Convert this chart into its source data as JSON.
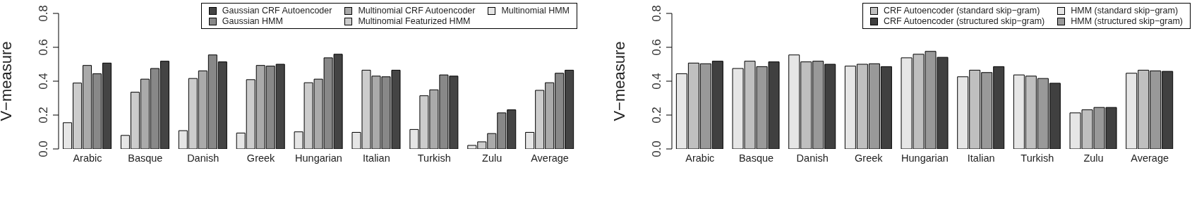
{
  "chart_data": [
    {
      "type": "bar",
      "ylabel": "V−measure",
      "categories": [
        "Arabic",
        "Basque",
        "Danish",
        "Greek",
        "Hungarian",
        "Italian",
        "Turkish",
        "Zulu",
        "Average"
      ],
      "ylim": [
        0,
        0.8
      ],
      "yticks": [
        {
          "value": 0,
          "label": "0.0"
        },
        0.2,
        0.4,
        0.6,
        0.8
      ],
      "legend": "top",
      "series": [
        {
          "name": "Multinomial HMM",
          "color": "#e6e6e6",
          "values": [
            0.155,
            0.08,
            0.108,
            0.094,
            0.101,
            0.098,
            0.115,
            0.021,
            0.098
          ]
        },
        {
          "name": "Multinomial Featurized HMM",
          "color": "#cccccc",
          "values": [
            0.389,
            0.335,
            0.416,
            0.409,
            0.391,
            0.465,
            0.314,
            0.042,
            0.346
          ]
        },
        {
          "name": "Multinomial CRF Autoencoder",
          "color": "#aaaaaa",
          "values": [
            0.493,
            0.412,
            0.461,
            0.493,
            0.412,
            0.43,
            0.349,
            0.091,
            0.391
          ]
        },
        {
          "name": "Gaussian HMM",
          "color": "#888888",
          "values": [
            0.444,
            0.475,
            0.555,
            0.489,
            0.538,
            0.426,
            0.437,
            0.213,
            0.447
          ]
        },
        {
          "name": "Gaussian CRF Autoencoder",
          "color": "#444444",
          "values": [
            0.507,
            0.518,
            0.514,
            0.5,
            0.559,
            0.465,
            0.43,
            0.231,
            0.465
          ]
        }
      ]
    },
    {
      "type": "bar",
      "ylabel": "V−measure",
      "categories": [
        "Arabic",
        "Basque",
        "Danish",
        "Greek",
        "Hungarian",
        "Italian",
        "Turkish",
        "Zulu",
        "Average"
      ],
      "ylim": [
        0,
        0.8
      ],
      "yticks": [
        {
          "value": 0,
          "label": "0.0"
        },
        0.2,
        0.4,
        0.6,
        0.8
      ],
      "legend": "top",
      "series": [
        {
          "name": "HMM (standard skip−gram)",
          "color": "#e6e6e6",
          "values": [
            0.444,
            0.475,
            0.555,
            0.489,
            0.538,
            0.426,
            0.437,
            0.213,
            0.447
          ]
        },
        {
          "name": "CRF Autoencoder (standard skip−gram)",
          "color": "#bfbfbf",
          "values": [
            0.507,
            0.518,
            0.514,
            0.5,
            0.559,
            0.465,
            0.43,
            0.231,
            0.465
          ]
        },
        {
          "name": "HMM (structured skip−gram)",
          "color": "#999999",
          "values": [
            0.503,
            0.486,
            0.518,
            0.503,
            0.576,
            0.451,
            0.416,
            0.245,
            0.461
          ]
        },
        {
          "name": "CRF Autoencoder (structured skip−gram)",
          "color": "#404040",
          "values": [
            0.518,
            0.514,
            0.5,
            0.486,
            0.541,
            0.486,
            0.388,
            0.245,
            0.458
          ]
        }
      ]
    }
  ]
}
